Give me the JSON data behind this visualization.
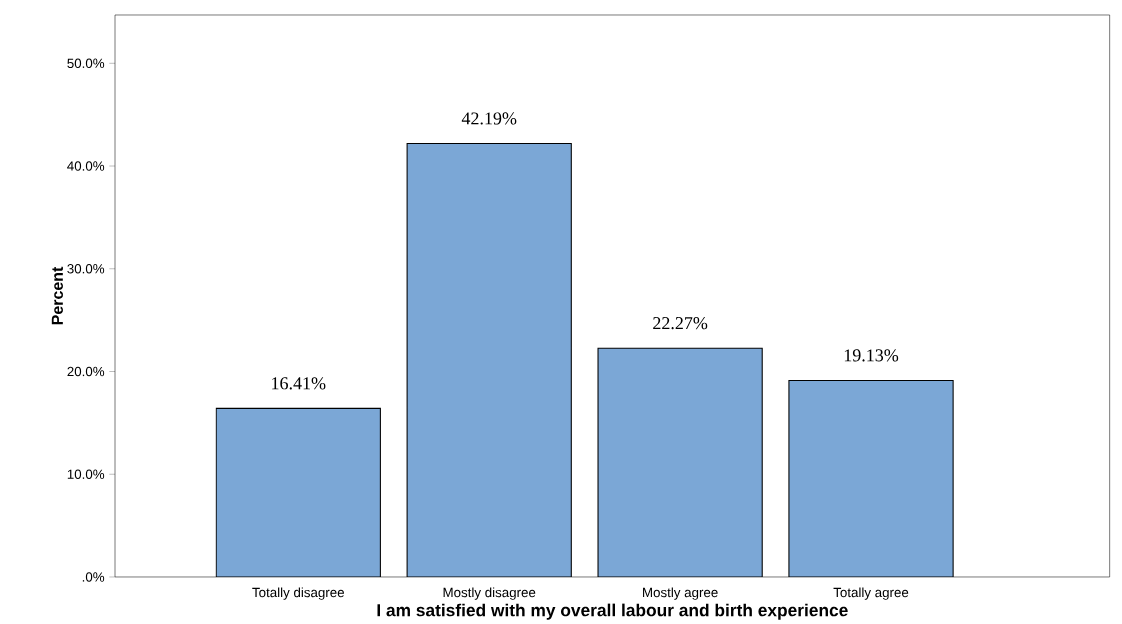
{
  "chart_data": {
    "type": "bar",
    "xlabel": "I am satisfied with my overall labour and birth experience",
    "ylabel": "Percent",
    "categories": [
      "Totally disagree",
      "Mostly disagree",
      "Mostly agree",
      "Totally agree"
    ],
    "values": [
      16.41,
      42.19,
      22.27,
      19.13
    ],
    "value_labels": [
      "16.41%",
      "42.19%",
      "22.27%",
      "19.13%"
    ],
    "color": "#7ba7d6",
    "ylim": [
      0,
      54.7
    ],
    "yticks": [
      {
        "value": 0,
        "label": ".0%"
      },
      {
        "value": 10,
        "label": "10.0%"
      },
      {
        "value": 20,
        "label": "20.0%"
      },
      {
        "value": 30,
        "label": "30.0%"
      },
      {
        "value": 40,
        "label": "40.0%"
      },
      {
        "value": 50,
        "label": "50.0%"
      }
    ]
  }
}
